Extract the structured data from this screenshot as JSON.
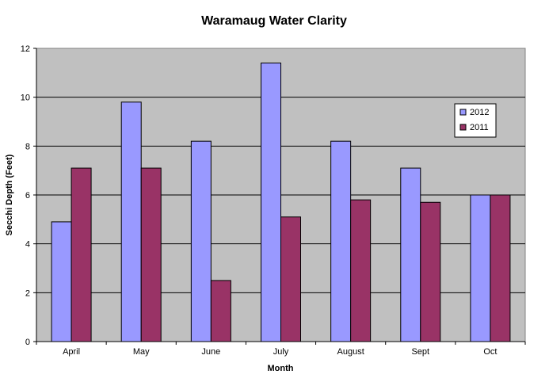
{
  "chart_data": {
    "type": "bar",
    "title": "Waramaug Water Clarity",
    "xlabel": "Month",
    "ylabel": "Secchi Depth (Feet)",
    "ylim": [
      0,
      12
    ],
    "yticks": [
      0,
      2,
      4,
      6,
      8,
      10,
      12
    ],
    "grid": true,
    "legend_position": "right",
    "categories": [
      "April",
      "May",
      "June",
      "July",
      "August",
      "Sept",
      "Oct"
    ],
    "series": [
      {
        "name": "2012",
        "color": "#9999ff",
        "values": [
          4.9,
          9.8,
          8.2,
          11.4,
          8.2,
          7.1,
          6.0
        ]
      },
      {
        "name": "2011",
        "color": "#993366",
        "values": [
          7.1,
          7.1,
          2.5,
          5.1,
          5.8,
          5.7,
          6.0
        ]
      }
    ],
    "plot_background": "#c0c0c0"
  }
}
